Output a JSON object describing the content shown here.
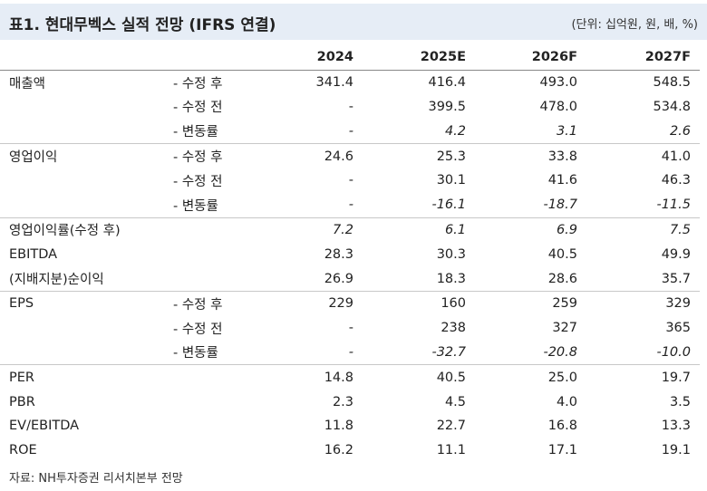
{
  "title": "표1. 현대무벡스 실적 전망 (IFRS 연결)",
  "unit": "(단위: 십억원, 원, 배, %)",
  "columns": [
    "2024",
    "2025E",
    "2026F",
    "2027F"
  ],
  "rows": [
    {
      "label": "매출액",
      "sub": "- 수정 후",
      "values": [
        "341.4",
        "416.4",
        "493.0",
        "548.5"
      ],
      "italic": false,
      "group_start": true
    },
    {
      "label": "",
      "sub": "- 수정 전",
      "values": [
        "-",
        "399.5",
        "478.0",
        "534.8"
      ],
      "italic": false,
      "group_start": false
    },
    {
      "label": "",
      "sub": "- 변동률",
      "values": [
        "-",
        "4.2",
        "3.1",
        "2.6"
      ],
      "italic": true,
      "group_start": false
    },
    {
      "label": "영업이익",
      "sub": "- 수정 후",
      "values": [
        "24.6",
        "25.3",
        "33.8",
        "41.0"
      ],
      "italic": false,
      "group_start": true
    },
    {
      "label": "",
      "sub": "- 수정 전",
      "values": [
        "-",
        "30.1",
        "41.6",
        "46.3"
      ],
      "italic": false,
      "group_start": false
    },
    {
      "label": "",
      "sub": "- 변동률",
      "values": [
        "-",
        "-16.1",
        "-18.7",
        "-11.5"
      ],
      "italic": true,
      "group_start": false
    },
    {
      "label": "영업이익률(수정 후)",
      "sub": "",
      "values": [
        "7.2",
        "6.1",
        "6.9",
        "7.5"
      ],
      "italic": true,
      "group_start": true
    },
    {
      "label": "EBITDA",
      "sub": "",
      "values": [
        "28.3",
        "30.3",
        "40.5",
        "49.9"
      ],
      "italic": false,
      "group_start": false
    },
    {
      "label": "(지배지분)순이익",
      "sub": "",
      "values": [
        "26.9",
        "18.3",
        "28.6",
        "35.7"
      ],
      "italic": false,
      "group_start": false
    },
    {
      "label": "EPS",
      "sub": "- 수정 후",
      "values": [
        "229",
        "160",
        "259",
        "329"
      ],
      "italic": false,
      "group_start": true
    },
    {
      "label": "",
      "sub": "- 수정 전",
      "values": [
        "-",
        "238",
        "327",
        "365"
      ],
      "italic": false,
      "group_start": false
    },
    {
      "label": "",
      "sub": "- 변동률",
      "values": [
        "-",
        "-32.7",
        "-20.8",
        "-10.0"
      ],
      "italic": true,
      "group_start": false
    },
    {
      "label": "PER",
      "sub": "",
      "values": [
        "14.8",
        "40.5",
        "25.0",
        "19.7"
      ],
      "italic": false,
      "group_start": true
    },
    {
      "label": "PBR",
      "sub": "",
      "values": [
        "2.3",
        "4.5",
        "4.0",
        "3.5"
      ],
      "italic": false,
      "group_start": false
    },
    {
      "label": "EV/EBITDA",
      "sub": "",
      "values": [
        "11.8",
        "22.7",
        "16.8",
        "13.3"
      ],
      "italic": false,
      "group_start": false
    },
    {
      "label": "ROE",
      "sub": "",
      "values": [
        "16.2",
        "11.1",
        "17.1",
        "19.1"
      ],
      "italic": false,
      "group_start": false
    }
  ],
  "source": "자료: NH투자증권 리서치본부 전망"
}
